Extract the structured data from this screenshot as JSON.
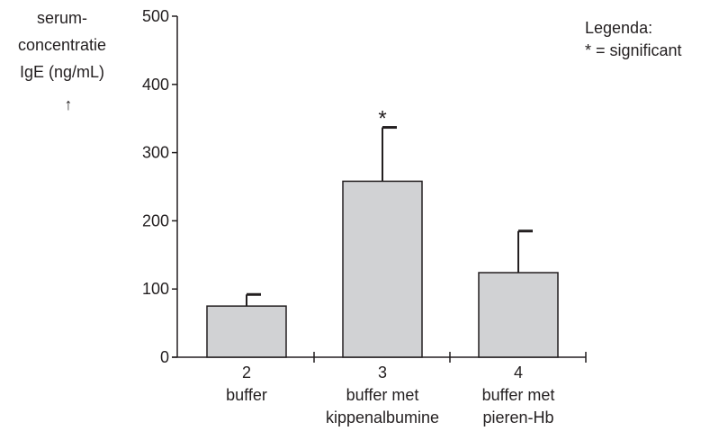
{
  "chart_data": {
    "type": "bar",
    "ylabel_lines": [
      "serum-",
      "concentratie",
      "IgE (ng/mL)"
    ],
    "ylabel_arrow": "↑",
    "ylim": [
      0,
      500
    ],
    "yticks": [
      0,
      100,
      200,
      300,
      400,
      500
    ],
    "categories": [
      {
        "number": "2",
        "lines": [
          "buffer"
        ]
      },
      {
        "number": "3",
        "lines": [
          "buffer met",
          "kippenalbumine"
        ]
      },
      {
        "number": "4",
        "lines": [
          "buffer met",
          "pieren-Hb"
        ]
      }
    ],
    "values": [
      75,
      258,
      124
    ],
    "error_upper": [
      92,
      337,
      185
    ],
    "significant": [
      false,
      true,
      false
    ],
    "significance_marker": "*",
    "legend_title": "Legenda:",
    "legend_entry": "* = significant",
    "colors": {
      "bar_fill": "#d1d2d4",
      "stroke": "#231f20"
    }
  }
}
